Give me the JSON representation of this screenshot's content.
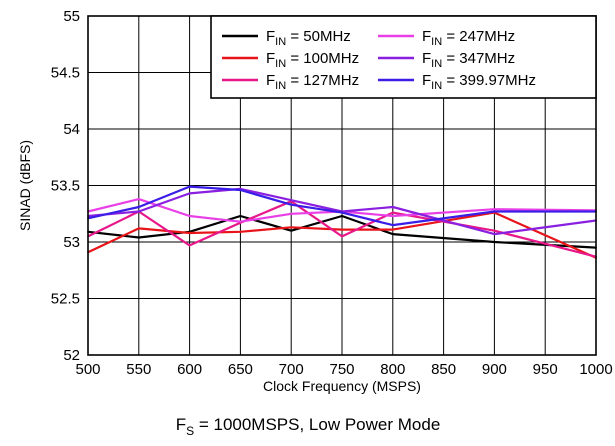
{
  "chart_data": {
    "type": "line",
    "xlabel": "Clock Frequency (MSPS)",
    "ylabel": "SINAD (dBFS)",
    "caption": {
      "main": "F",
      "sub": "S",
      "rest": " = 1000MSPS, Low Power Mode"
    },
    "xlim": [
      500,
      1000
    ],
    "ylim": [
      52,
      55
    ],
    "x_ticks": [
      "500",
      "550",
      "600",
      "650",
      "700",
      "750",
      "800",
      "850",
      "900",
      "950",
      "1000"
    ],
    "y_ticks": [
      "52",
      "52.5",
      "53",
      "53.5",
      "54",
      "54.5",
      "55"
    ],
    "grid": true,
    "legend_position": "top-right",
    "x": [
      500,
      550,
      600,
      650,
      700,
      750,
      800,
      900,
      1000
    ],
    "series": [
      {
        "main": "F",
        "sub": "IN",
        "rest": " = 50MHz",
        "color": "#000000",
        "values": [
          53.09,
          53.04,
          53.09,
          53.23,
          53.1,
          53.23,
          53.07,
          53.0,
          52.95
        ]
      },
      {
        "main": "F",
        "sub": "IN",
        "rest": " = 100MHz",
        "color": "#e8141a",
        "values": [
          52.91,
          53.12,
          53.08,
          53.09,
          53.13,
          53.11,
          53.11,
          53.26,
          52.86
        ]
      },
      {
        "main": "F",
        "sub": "IN",
        "rest": " = 127MHz",
        "color": "#e8178a",
        "values": [
          53.05,
          53.27,
          52.97,
          53.17,
          53.36,
          53.05,
          53.26,
          53.1,
          52.87
        ]
      },
      {
        "main": "F",
        "sub": "IN",
        "rest": " = 247MHz",
        "color": "#e840e6",
        "values": [
          53.27,
          53.38,
          53.23,
          53.18,
          53.25,
          53.27,
          53.23,
          53.29,
          53.28
        ]
      },
      {
        "main": "F",
        "sub": "IN",
        "rest": " = 347MHz",
        "color": "#8a1fe0",
        "values": [
          53.23,
          53.27,
          53.43,
          53.47,
          53.37,
          53.27,
          53.31,
          53.07,
          53.19
        ]
      },
      {
        "main": "F",
        "sub": "IN",
        "rest": " = 399.97MHz",
        "color": "#3a1ee8",
        "values": [
          53.21,
          53.31,
          53.49,
          53.46,
          53.33,
          53.26,
          53.15,
          53.27,
          53.27
        ]
      }
    ]
  }
}
